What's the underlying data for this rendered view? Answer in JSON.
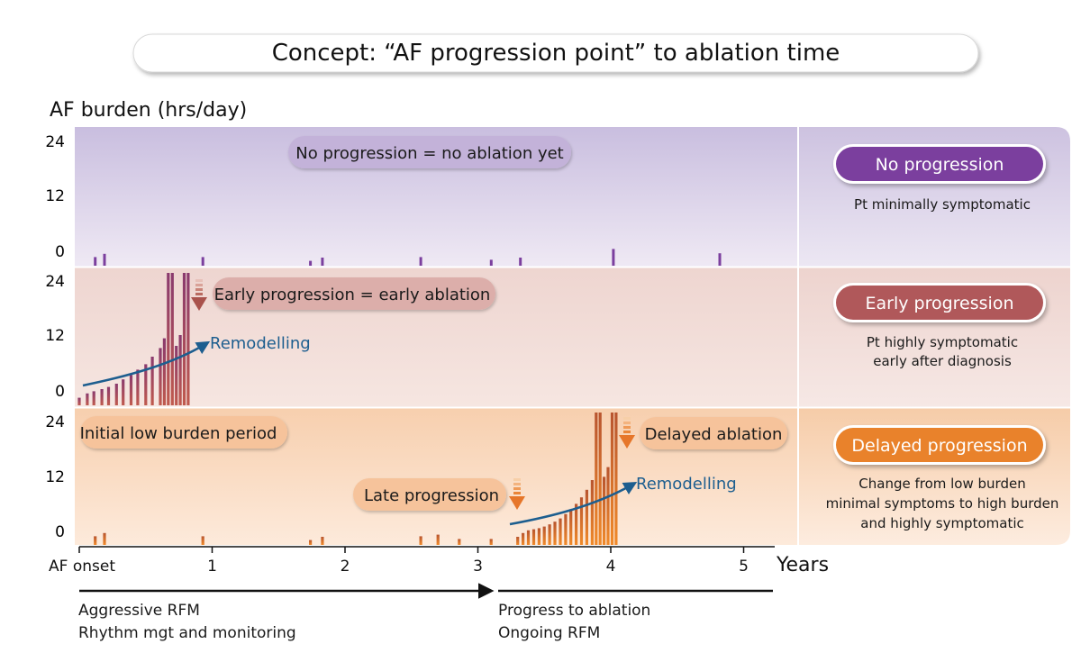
{
  "title": "Concept: “AF progression point” to ablation time",
  "y_axis_label": "AF burden (hrs/day)",
  "x_axis_label": "Years",
  "x_tick_labels": [
    "AF onset",
    "1",
    "2",
    "3",
    "4",
    "5"
  ],
  "y_tick_labels": [
    "24",
    "12",
    "0"
  ],
  "colors": {
    "purple": "#7b3f9e",
    "purple_bg": "#ddd6ea",
    "purple_pill": "#c5b3da",
    "red": "#b0585a",
    "red_bg": "#f1dcd7",
    "red_pill": "#dfb1ac",
    "orange": "#e9822b",
    "orange_bg": "#fbe1cc",
    "orange_pill": "#f6c39a",
    "blue": "#1d5e8f"
  },
  "panels": [
    {
      "id": "no-progression",
      "pill_text": "No progression = no ablation yet",
      "badge": "No progression",
      "description": [
        "Pt minimally symptomatic"
      ],
      "bars": [
        {
          "t": 0.12,
          "h": 1.6
        },
        {
          "t": 0.19,
          "h": 2.2
        },
        {
          "t": 0.93,
          "h": 1.6
        },
        {
          "t": 1.74,
          "h": 0.9
        },
        {
          "t": 1.83,
          "h": 1.5
        },
        {
          "t": 2.57,
          "h": 1.6
        },
        {
          "t": 3.1,
          "h": 1.1
        },
        {
          "t": 3.32,
          "h": 1.5
        },
        {
          "t": 4.02,
          "h": 3.1
        },
        {
          "t": 4.82,
          "h": 2.3
        }
      ]
    },
    {
      "id": "early-progression",
      "pill_text": "Early progression = early ablation",
      "badge": "Early progression",
      "description": [
        "Pt highly symptomatic",
        "early after diagnosis"
      ],
      "remodelling_label": "Remodelling",
      "bars": [
        {
          "t": 0.0,
          "h": 1.4
        },
        {
          "t": 0.06,
          "h": 2.2
        },
        {
          "t": 0.11,
          "h": 2.6
        },
        {
          "t": 0.17,
          "h": 3.0
        },
        {
          "t": 0.22,
          "h": 3.4
        },
        {
          "t": 0.28,
          "h": 4.0
        },
        {
          "t": 0.33,
          "h": 4.8
        },
        {
          "t": 0.39,
          "h": 5.6
        },
        {
          "t": 0.44,
          "h": 6.6
        },
        {
          "t": 0.5,
          "h": 7.6
        },
        {
          "t": 0.55,
          "h": 9.0
        },
        {
          "t": 0.61,
          "h": 10.6
        },
        {
          "t": 0.64,
          "h": 12.4
        },
        {
          "t": 0.67,
          "h": 24.5
        },
        {
          "t": 0.7,
          "h": 24.5
        },
        {
          "t": 0.73,
          "h": 11.0
        },
        {
          "t": 0.76,
          "h": 13.0
        },
        {
          "t": 0.79,
          "h": 24.5
        },
        {
          "t": 0.82,
          "h": 24.5
        }
      ]
    },
    {
      "id": "delayed-progression",
      "pill_text": "Initial low burden period",
      "late_pill_text": "Late progression",
      "delayed_pill_text": "Delayed ablation",
      "badge": "Delayed progression",
      "description": [
        "Change from low burden",
        "minimal symptoms to high burden",
        "and highly symptomatic"
      ],
      "remodelling_label": "Remodelling",
      "bars": [
        {
          "t": 0.12,
          "h": 1.6
        },
        {
          "t": 0.19,
          "h": 2.2
        },
        {
          "t": 0.93,
          "h": 1.6
        },
        {
          "t": 1.74,
          "h": 0.9
        },
        {
          "t": 1.83,
          "h": 1.5
        },
        {
          "t": 2.57,
          "h": 1.6
        },
        {
          "t": 2.7,
          "h": 1.9
        },
        {
          "t": 2.86,
          "h": 1.1
        },
        {
          "t": 3.1,
          "h": 1.1
        },
        {
          "t": 3.3,
          "h": 1.5
        },
        {
          "t": 3.34,
          "h": 2.2
        },
        {
          "t": 3.38,
          "h": 2.7
        },
        {
          "t": 3.42,
          "h": 2.9
        },
        {
          "t": 3.46,
          "h": 3.1
        },
        {
          "t": 3.5,
          "h": 3.4
        },
        {
          "t": 3.54,
          "h": 3.8
        },
        {
          "t": 3.58,
          "h": 4.3
        },
        {
          "t": 3.62,
          "h": 4.9
        },
        {
          "t": 3.66,
          "h": 5.7
        },
        {
          "t": 3.7,
          "h": 6.6
        },
        {
          "t": 3.74,
          "h": 7.6
        },
        {
          "t": 3.78,
          "h": 8.8
        },
        {
          "t": 3.82,
          "h": 10.2
        },
        {
          "t": 3.86,
          "h": 12.0
        },
        {
          "t": 3.89,
          "h": 24.5
        },
        {
          "t": 3.92,
          "h": 24.5
        },
        {
          "t": 3.95,
          "h": 12.6
        },
        {
          "t": 3.98,
          "h": 14.4
        },
        {
          "t": 4.01,
          "h": 24.5
        },
        {
          "t": 4.04,
          "h": 24.5
        }
      ]
    }
  ],
  "bottom_phases": [
    {
      "lines": [
        "Aggressive RFM",
        "Rhythm mgt and monitoring"
      ]
    },
    {
      "lines": [
        "Progress to ablation",
        "Ongoing RFM"
      ]
    }
  ]
}
